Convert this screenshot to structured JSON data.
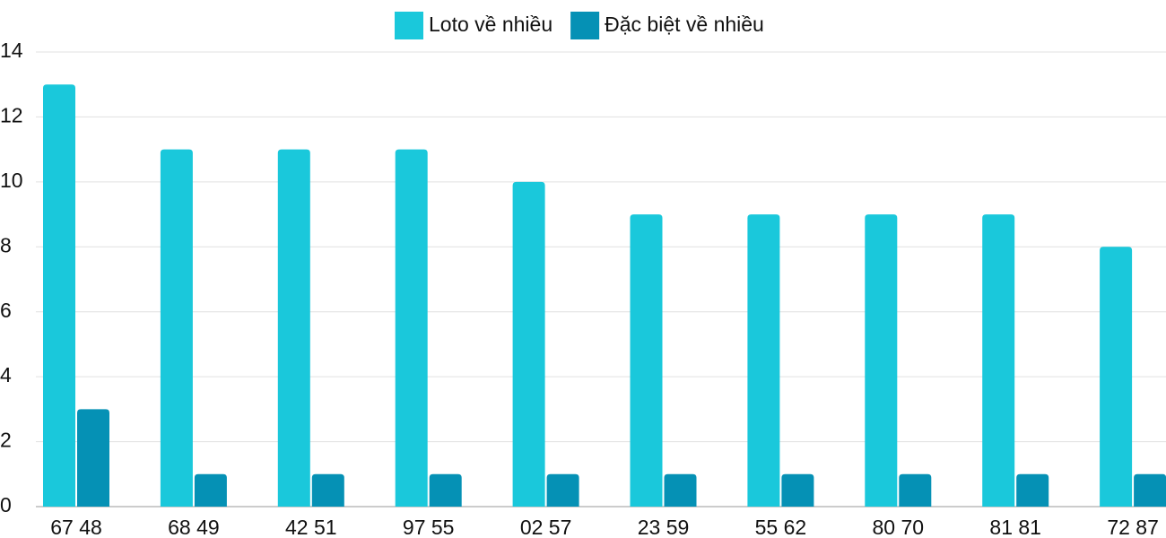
{
  "chart_data": {
    "type": "bar",
    "categories": [
      "67 48",
      "68 49",
      "42 51",
      "97 55",
      "02 57",
      "23 59",
      "55 62",
      "80 70",
      "81 81",
      "72 87"
    ],
    "series": [
      {
        "name": "Loto về nhiều",
        "color": "#1ac8db",
        "values": [
          13,
          11,
          11,
          11,
          10,
          9,
          9,
          9,
          9,
          8
        ]
      },
      {
        "name": "Đặc biệt về nhiều",
        "color": "#0591b5",
        "values": [
          3,
          1,
          1,
          1,
          1,
          1,
          1,
          1,
          1,
          1
        ]
      }
    ],
    "ylim": [
      0,
      14
    ],
    "yticks": [
      0,
      2,
      4,
      6,
      8,
      10,
      12,
      14
    ],
    "grid": true,
    "legend": "top"
  }
}
